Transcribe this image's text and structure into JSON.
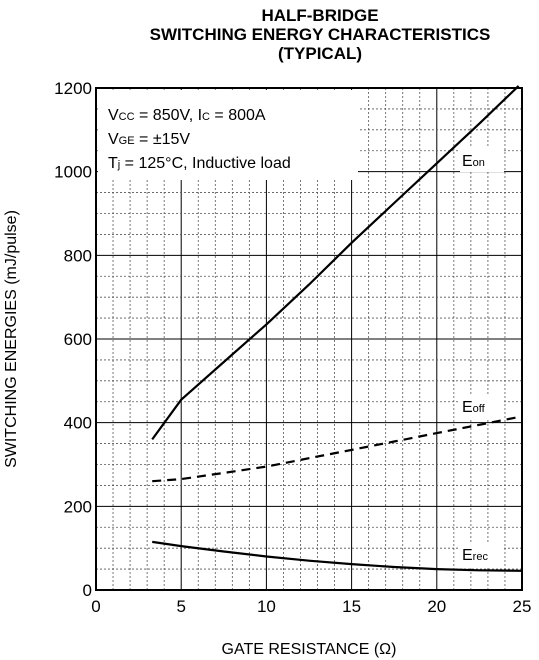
{
  "chart_data": {
    "type": "line",
    "title_lines": [
      "HALF-BRIDGE",
      "SWITCHING ENERGY CHARACTERISTICS",
      "(TYPICAL)"
    ],
    "xlabel": "GATE RESISTANCE (Ω)",
    "ylabel": "SWITCHING ENERGIES (mJ/pulse)",
    "xlim": [
      0,
      25
    ],
    "ylim": [
      0,
      1200
    ],
    "x_ticks": [
      0,
      5,
      10,
      15,
      20,
      25
    ],
    "y_ticks": [
      0,
      200,
      400,
      600,
      800,
      1000,
      1200
    ],
    "grid": "major and minor",
    "conditions": {
      "line1": {
        "a": "V",
        "a_sub": "CC",
        "b": " = 850V, I",
        "b_sub": "C",
        "c": " = 800A"
      },
      "line2": {
        "a": "V",
        "a_sub": "GE",
        "b": " = ±15V"
      },
      "line3": {
        "a": "T",
        "a_sub": "j",
        "b": " = 125°C, Inductive load"
      }
    },
    "series": [
      {
        "name": "Eon",
        "label_main": "E",
        "label_sub": "on",
        "style": "solid",
        "x": [
          3.3,
          5,
          7.5,
          10,
          12.5,
          15,
          17.5,
          20,
          22.5,
          24.8
        ],
        "y": [
          360,
          455,
          545,
          635,
          730,
          830,
          925,
          1020,
          1115,
          1205
        ]
      },
      {
        "name": "Eoff",
        "label_main": "E",
        "label_sub": "off",
        "style": "dashed",
        "x": [
          3.3,
          5,
          7.5,
          10,
          12.5,
          15,
          17.5,
          20,
          22.5,
          25
        ],
        "y": [
          260,
          265,
          280,
          295,
          315,
          335,
          355,
          375,
          395,
          415
        ]
      },
      {
        "name": "Erec",
        "label_main": "E",
        "label_sub": "rec",
        "style": "solid",
        "x": [
          3.3,
          5,
          7.5,
          10,
          12.5,
          15,
          17.5,
          20,
          22.5,
          25
        ],
        "y": [
          115,
          105,
          92,
          80,
          70,
          62,
          55,
          50,
          47,
          46
        ]
      }
    ]
  }
}
